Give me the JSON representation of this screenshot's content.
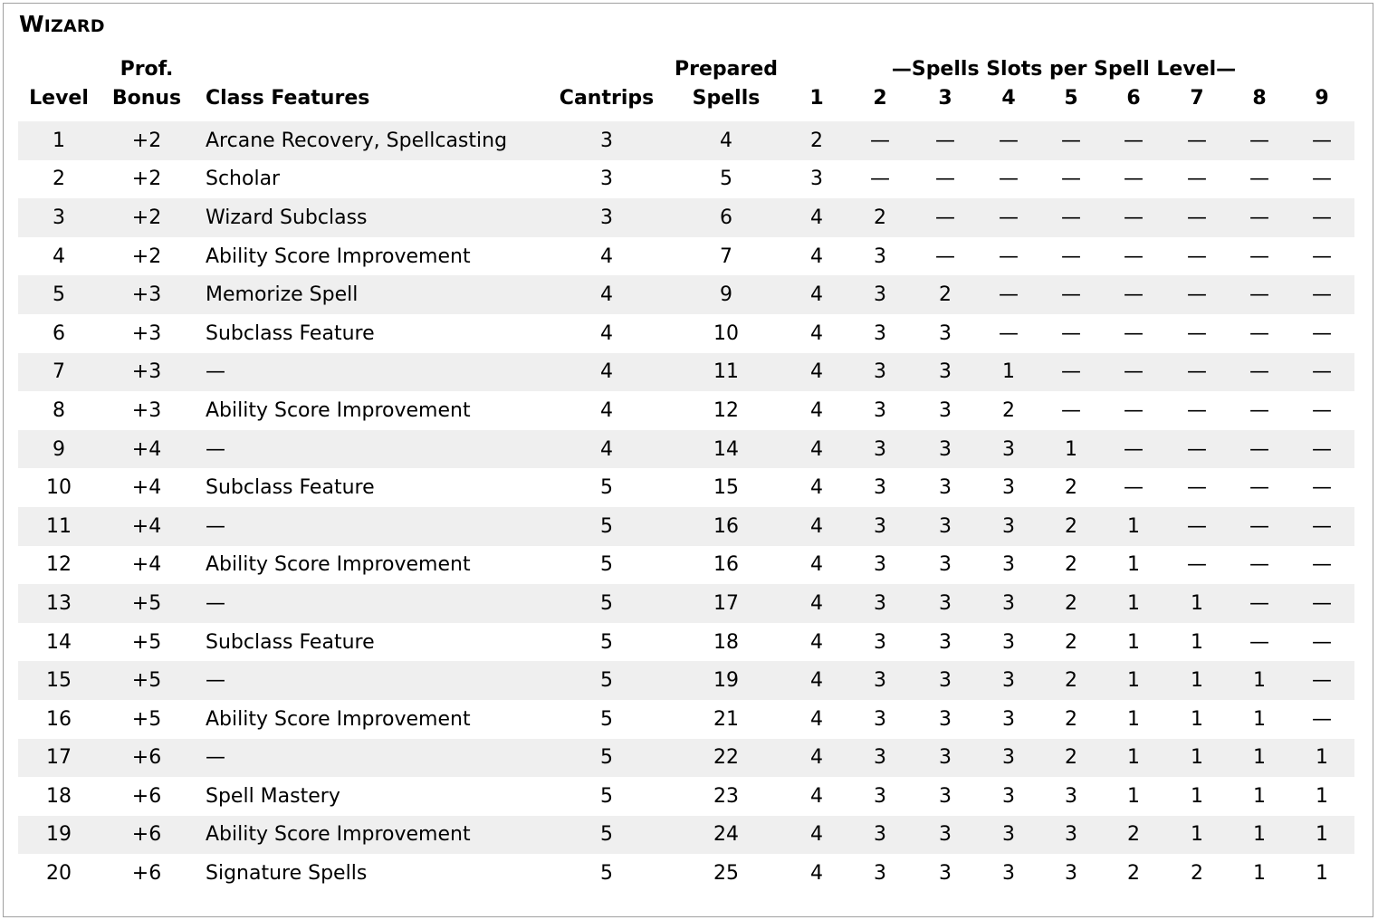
{
  "title": {
    "cap": "W",
    "rest": "IZARD"
  },
  "headers": {
    "level": "Level",
    "prof_line1": "Prof.",
    "prof_line2": "Bonus",
    "features": "Class Features",
    "cantrips": "Cantrips",
    "prepared_line1": "Prepared",
    "prepared_line2": "Spells",
    "slots_group": "—Spells Slots per Spell Level—",
    "slot_levels": [
      "1",
      "2",
      "3",
      "4",
      "5",
      "6",
      "7",
      "8",
      "9"
    ]
  },
  "rows": [
    {
      "level": "1",
      "prof": "+2",
      "feature": "Arcane Recovery, Spellcasting",
      "cantrips": "3",
      "prepared": "4",
      "slots": [
        "2",
        "—",
        "—",
        "—",
        "—",
        "—",
        "—",
        "—",
        "—"
      ]
    },
    {
      "level": "2",
      "prof": "+2",
      "feature": "Scholar",
      "cantrips": "3",
      "prepared": "5",
      "slots": [
        "3",
        "—",
        "—",
        "—",
        "—",
        "—",
        "—",
        "—",
        "—"
      ]
    },
    {
      "level": "3",
      "prof": "+2",
      "feature": "Wizard Subclass",
      "cantrips": "3",
      "prepared": "6",
      "slots": [
        "4",
        "2",
        "—",
        "—",
        "—",
        "—",
        "—",
        "—",
        "—"
      ]
    },
    {
      "level": "4",
      "prof": "+2",
      "feature": "Ability Score Improvement",
      "cantrips": "4",
      "prepared": "7",
      "slots": [
        "4",
        "3",
        "—",
        "—",
        "—",
        "—",
        "—",
        "—",
        "—"
      ]
    },
    {
      "level": "5",
      "prof": "+3",
      "feature": "Memorize Spell",
      "cantrips": "4",
      "prepared": "9",
      "slots": [
        "4",
        "3",
        "2",
        "—",
        "—",
        "—",
        "—",
        "—",
        "—"
      ]
    },
    {
      "level": "6",
      "prof": "+3",
      "feature": "Subclass Feature",
      "cantrips": "4",
      "prepared": "10",
      "slots": [
        "4",
        "3",
        "3",
        "—",
        "—",
        "—",
        "—",
        "—",
        "—"
      ]
    },
    {
      "level": "7",
      "prof": "+3",
      "feature": "—",
      "cantrips": "4",
      "prepared": "11",
      "slots": [
        "4",
        "3",
        "3",
        "1",
        "—",
        "—",
        "—",
        "—",
        "—"
      ]
    },
    {
      "level": "8",
      "prof": "+3",
      "feature": "Ability Score Improvement",
      "cantrips": "4",
      "prepared": "12",
      "slots": [
        "4",
        "3",
        "3",
        "2",
        "—",
        "—",
        "—",
        "—",
        "—"
      ]
    },
    {
      "level": "9",
      "prof": "+4",
      "feature": "—",
      "cantrips": "4",
      "prepared": "14",
      "slots": [
        "4",
        "3",
        "3",
        "3",
        "1",
        "—",
        "—",
        "—",
        "—"
      ]
    },
    {
      "level": "10",
      "prof": "+4",
      "feature": "Subclass Feature",
      "cantrips": "5",
      "prepared": "15",
      "slots": [
        "4",
        "3",
        "3",
        "3",
        "2",
        "—",
        "—",
        "—",
        "—"
      ]
    },
    {
      "level": "11",
      "prof": "+4",
      "feature": "—",
      "cantrips": "5",
      "prepared": "16",
      "slots": [
        "4",
        "3",
        "3",
        "3",
        "2",
        "1",
        "—",
        "—",
        "—"
      ]
    },
    {
      "level": "12",
      "prof": "+4",
      "feature": "Ability Score Improvement",
      "cantrips": "5",
      "prepared": "16",
      "slots": [
        "4",
        "3",
        "3",
        "3",
        "2",
        "1",
        "—",
        "—",
        "—"
      ]
    },
    {
      "level": "13",
      "prof": "+5",
      "feature": "—",
      "cantrips": "5",
      "prepared": "17",
      "slots": [
        "4",
        "3",
        "3",
        "3",
        "2",
        "1",
        "1",
        "—",
        "—"
      ]
    },
    {
      "level": "14",
      "prof": "+5",
      "feature": "Subclass Feature",
      "cantrips": "5",
      "prepared": "18",
      "slots": [
        "4",
        "3",
        "3",
        "3",
        "2",
        "1",
        "1",
        "—",
        "—"
      ]
    },
    {
      "level": "15",
      "prof": "+5",
      "feature": "—",
      "cantrips": "5",
      "prepared": "19",
      "slots": [
        "4",
        "3",
        "3",
        "3",
        "2",
        "1",
        "1",
        "1",
        "—"
      ]
    },
    {
      "level": "16",
      "prof": "+5",
      "feature": "Ability Score Improvement",
      "cantrips": "5",
      "prepared": "21",
      "slots": [
        "4",
        "3",
        "3",
        "3",
        "2",
        "1",
        "1",
        "1",
        "—"
      ]
    },
    {
      "level": "17",
      "prof": "+6",
      "feature": "—",
      "cantrips": "5",
      "prepared": "22",
      "slots": [
        "4",
        "3",
        "3",
        "3",
        "2",
        "1",
        "1",
        "1",
        "1"
      ]
    },
    {
      "level": "18",
      "prof": "+6",
      "feature": "Spell Mastery",
      "cantrips": "5",
      "prepared": "23",
      "slots": [
        "4",
        "3",
        "3",
        "3",
        "3",
        "1",
        "1",
        "1",
        "1"
      ]
    },
    {
      "level": "19",
      "prof": "+6",
      "feature": "Ability Score Improvement",
      "cantrips": "5",
      "prepared": "24",
      "slots": [
        "4",
        "3",
        "3",
        "3",
        "3",
        "2",
        "1",
        "1",
        "1"
      ]
    },
    {
      "level": "20",
      "prof": "+6",
      "feature": "Signature Spells",
      "cantrips": "5",
      "prepared": "25",
      "slots": [
        "4",
        "3",
        "3",
        "3",
        "3",
        "2",
        "2",
        "1",
        "1"
      ]
    }
  ],
  "colors": {
    "row_shade": "#efefef",
    "frame_border": "#a0a0a0",
    "text": "#000000"
  }
}
